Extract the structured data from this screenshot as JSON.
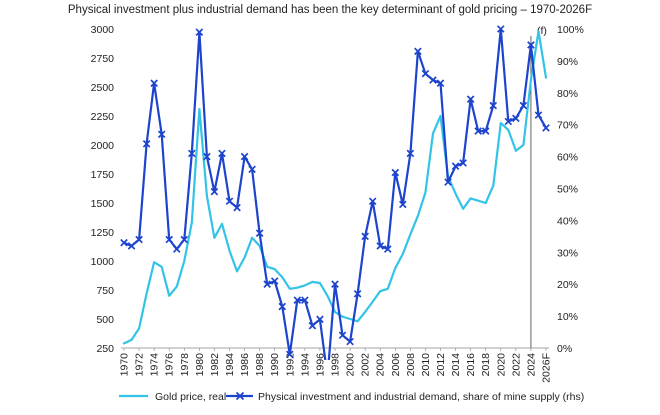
{
  "chart_data": {
    "type": "line",
    "title": "Physical investment plus industrial demand has been the key determinant of gold pricing – 1970-2026F",
    "forecast_marker": "(f)",
    "x_tick_labels": [
      "1970",
      "1972",
      "1974",
      "1976",
      "1978",
      "1980",
      "1982",
      "1984",
      "1986",
      "1988",
      "1990",
      "1992",
      "1994",
      "1996",
      "1998",
      "2000",
      "2002",
      "2004",
      "2006",
      "2008",
      "2010",
      "2012",
      "2014",
      "2016",
      "2018",
      "2020",
      "2022",
      "2024",
      "2026F"
    ],
    "x": [
      1970,
      1971,
      1972,
      1973,
      1974,
      1975,
      1976,
      1977,
      1978,
      1979,
      1980,
      1981,
      1982,
      1983,
      1984,
      1985,
      1986,
      1987,
      1988,
      1989,
      1990,
      1991,
      1992,
      1993,
      1994,
      1995,
      1996,
      1997,
      1998,
      1999,
      2000,
      2001,
      2002,
      2003,
      2004,
      2005,
      2006,
      2007,
      2008,
      2009,
      2010,
      2011,
      2012,
      2013,
      2014,
      2015,
      2016,
      2017,
      2018,
      2019,
      2020,
      2021,
      2022,
      2023,
      2024,
      2025,
      2026
    ],
    "forecast_from": 2024,
    "left_axis": {
      "ylim": [
        250,
        3000
      ],
      "ticks": [
        250,
        500,
        750,
        1000,
        1250,
        1500,
        1750,
        2000,
        2250,
        2500,
        2750,
        3000
      ]
    },
    "right_axis": {
      "ylim": [
        0,
        100
      ],
      "ticks": [
        0,
        10,
        20,
        30,
        40,
        50,
        60,
        70,
        80,
        90,
        100
      ],
      "tick_suffix": "%"
    },
    "legend_position": "bottom",
    "series": [
      {
        "name": "Gold price, real",
        "axis": "left",
        "color": "#33c3e6",
        "marker": "none",
        "values": [
          290,
          320,
          420,
          720,
          990,
          950,
          700,
          780,
          1000,
          1330,
          2310,
          1560,
          1200,
          1320,
          1090,
          910,
          1030,
          1200,
          1130,
          950,
          930,
          860,
          760,
          770,
          790,
          820,
          810,
          700,
          560,
          520,
          500,
          480,
          560,
          650,
          740,
          760,
          940,
          1060,
          1230,
          1390,
          1590,
          2100,
          2250,
          1730,
          1580,
          1450,
          1540,
          1520,
          1500,
          1650,
          2190,
          2130,
          1950,
          2000,
          2560,
          2980,
          2580
        ]
      },
      {
        "name": "Physical investment and industrial demand, share of mine supply (rhs)",
        "axis": "right",
        "color": "#1d44cc",
        "marker": "x",
        "values": [
          33,
          32,
          34,
          64,
          83,
          67,
          34,
          31,
          34,
          61,
          99,
          60,
          49,
          61,
          46,
          44,
          60,
          56,
          36,
          20,
          21,
          13,
          -2,
          15,
          15,
          7,
          9,
          -9,
          20,
          4,
          2,
          17,
          35,
          46,
          32,
          31,
          55,
          45,
          61,
          93,
          86,
          84,
          83,
          52,
          57,
          58,
          78,
          68,
          68,
          76,
          100,
          71,
          72,
          76,
          95,
          73,
          69
        ]
      }
    ]
  }
}
